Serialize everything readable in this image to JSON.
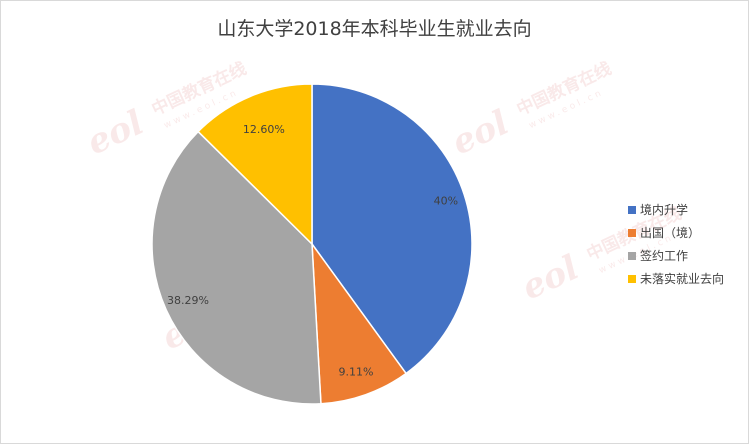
{
  "chart_data": {
    "type": "pie",
    "title": "山东大学2018年本科毕业生就业去向",
    "slices": [
      {
        "label": "境内升学",
        "value": 40,
        "display": "40%",
        "color": "#4472C4"
      },
      {
        "label": "出国（境）",
        "value": 9.11,
        "display": "9.11%",
        "color": "#ED7D31"
      },
      {
        "label": "签约工作",
        "value": 38.29,
        "display": "38.29%",
        "color": "#A5A5A5"
      },
      {
        "label": "未落实就业去向",
        "value": 12.6,
        "display": "12.60%",
        "color": "#FFC000"
      }
    ],
    "legend_position": "right"
  },
  "watermark": {
    "brand": "eol",
    "name": "中国教育在线",
    "url": "www.eol.cn"
  }
}
